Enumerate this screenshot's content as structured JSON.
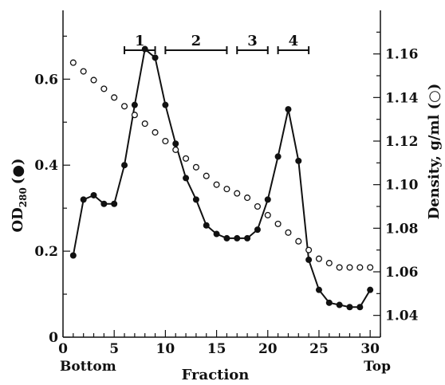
{
  "chart_data": {
    "type": "line",
    "xlabel": "Fraction",
    "ylabel_left": {
      "main": "OD",
      "sub": "280",
      "symbol": "(●)"
    },
    "ylabel_right": "Density, g/ml (○)",
    "x_end_labels": {
      "left": "Bottom",
      "right": "Top"
    },
    "xlim": [
      0,
      31
    ],
    "ylim_left": [
      0,
      0.76
    ],
    "ylim_right": [
      1.03,
      1.18
    ],
    "x_ticks": [
      0,
      5,
      10,
      15,
      20,
      25,
      30
    ],
    "x_tick_labels": [
      "0",
      "5",
      "10",
      "15",
      "20",
      "25",
      "30"
    ],
    "y_left_ticks": [
      0,
      0.2,
      0.4,
      0.6
    ],
    "y_left_tick_labels": [
      "0",
      "0.2",
      "0.4",
      "0.6"
    ],
    "y_right_ticks": [
      1.04,
      1.06,
      1.08,
      1.1,
      1.12,
      1.14,
      1.16
    ],
    "y_right_tick_labels": [
      "1.04",
      "1.06",
      "1.08",
      "1.10",
      "1.12",
      "1.14",
      "1.16"
    ],
    "grid": false,
    "fraction_groups": [
      {
        "label": "1",
        "start": 6,
        "end": 9
      },
      {
        "label": "2",
        "start": 10,
        "end": 16
      },
      {
        "label": "3",
        "start": 17,
        "end": 20
      },
      {
        "label": "4",
        "start": 21,
        "end": 24
      }
    ],
    "series": [
      {
        "axis": "left",
        "marker": "filled-circle",
        "connected": true,
        "x": [
          1,
          2,
          3,
          4,
          5,
          6,
          7,
          8,
          9,
          10,
          11,
          12,
          13,
          14,
          15,
          16,
          17,
          18,
          19,
          20,
          21,
          22,
          23,
          24,
          25,
          26,
          27,
          28,
          29,
          30
        ],
        "values": [
          0.19,
          0.32,
          0.33,
          0.31,
          0.31,
          0.4,
          0.54,
          0.67,
          0.65,
          0.54,
          0.45,
          0.37,
          0.32,
          0.26,
          0.24,
          0.23,
          0.23,
          0.23,
          0.25,
          0.32,
          0.42,
          0.53,
          0.41,
          0.18,
          0.11,
          0.08,
          0.075,
          0.07,
          0.07,
          0.11
        ]
      },
      {
        "axis": "right",
        "marker": "open-circle",
        "connected": false,
        "x": [
          1,
          2,
          3,
          4,
          5,
          6,
          7,
          8,
          9,
          10,
          11,
          12,
          13,
          14,
          15,
          16,
          17,
          18,
          19,
          20,
          21,
          22,
          23,
          24,
          25,
          26,
          27,
          28,
          29,
          30
        ],
        "values": [
          1.156,
          1.152,
          1.148,
          1.144,
          1.14,
          1.136,
          1.132,
          1.128,
          1.124,
          1.12,
          1.116,
          1.112,
          1.108,
          1.104,
          1.1,
          1.098,
          1.096,
          1.094,
          1.09,
          1.086,
          1.082,
          1.078,
          1.074,
          1.07,
          1.066,
          1.064,
          1.062,
          1.062,
          1.062,
          1.062
        ]
      }
    ]
  }
}
